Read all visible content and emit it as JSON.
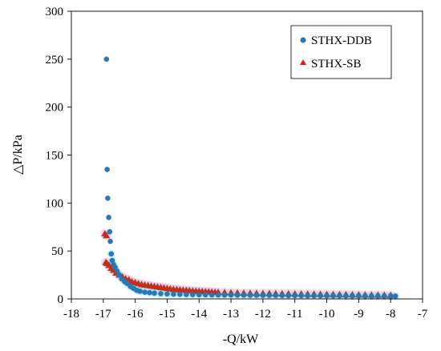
{
  "chart_data": {
    "type": "scatter",
    "xlabel": "-Q/kW",
    "ylabel": "△P/kPa",
    "xlim": [
      -18,
      -7
    ],
    "ylim": [
      0,
      300
    ],
    "xticks": [
      -18,
      -17,
      -16,
      -15,
      -14,
      -13,
      -12,
      -11,
      -10,
      -9,
      -8,
      -7
    ],
    "yticks": [
      0,
      50,
      100,
      150,
      200,
      250,
      300
    ],
    "grid": false,
    "legend_position": "top-right",
    "colors": {
      "ddb": "#2e75b6",
      "sb": "#e0201b",
      "sb_edge": "#6b5a1e",
      "ddb_halo": "#7fe6e6",
      "sb_halo": "#f5b8e8"
    },
    "series": [
      {
        "name": "STHX-DDB",
        "marker": "circle",
        "x": [
          -16.9,
          -16.88,
          -16.86,
          -16.83,
          -16.8,
          -16.78,
          -16.75,
          -16.72,
          -16.68,
          -16.63,
          -16.57,
          -16.5,
          -16.42,
          -16.33,
          -16.25,
          -16.15,
          -16.05,
          -15.95,
          -15.85,
          -15.7,
          -15.55,
          -15.4,
          -15.2,
          -15.0,
          -14.8,
          -14.6,
          -14.4,
          -14.2,
          -14.0,
          -13.8,
          -13.6,
          -13.4,
          -13.2,
          -13.0,
          -12.8,
          -12.6,
          -12.4,
          -12.2,
          -12.0,
          -11.8,
          -11.6,
          -11.4,
          -11.2,
          -11.0,
          -10.8,
          -10.6,
          -10.4,
          -10.2,
          -10.0,
          -9.8,
          -9.6,
          -9.4,
          -9.2,
          -9.0,
          -8.8,
          -8.6,
          -8.4,
          -8.2,
          -8.0,
          -7.85
        ],
        "y": [
          250,
          135,
          105,
          85,
          70,
          60,
          47,
          40,
          36,
          33,
          29,
          25,
          21,
          18,
          16,
          13,
          11,
          9,
          8,
          7,
          6.5,
          6,
          5.5,
          5.2,
          5,
          4.8,
          4.6,
          4.5,
          4.4,
          4.3,
          4.2,
          4.1,
          4,
          4,
          3.9,
          3.9,
          3.8,
          3.8,
          3.7,
          3.7,
          3.6,
          3.6,
          3.5,
          3.5,
          3.5,
          3.4,
          3.4,
          3.4,
          3.3,
          3.3,
          3.3,
          3.2,
          3.2,
          3.2,
          3.1,
          3.1,
          3.1,
          3.0,
          3.0,
          3.0
        ]
      },
      {
        "name": "STHX-SB",
        "marker": "triangle",
        "x": [
          -16.95,
          -16.9,
          -16.92,
          -16.88,
          -16.82,
          -16.75,
          -16.68,
          -16.6,
          -16.5,
          -16.4,
          -16.3,
          -16.2,
          -16.1,
          -16.0,
          -15.9,
          -15.8,
          -15.7,
          -15.6,
          -15.5,
          -15.4,
          -15.3,
          -15.2,
          -15.1,
          -15.0,
          -14.9,
          -14.8,
          -14.7,
          -14.6,
          -14.5,
          -14.4,
          -14.3,
          -14.2,
          -14.1,
          -14.0,
          -13.9,
          -13.8,
          -13.7,
          -13.6,
          -13.5,
          -13.4,
          -13.2,
          -13.0,
          -12.8,
          -12.6,
          -12.4,
          -12.2,
          -12.0,
          -11.8,
          -11.6,
          -11.4,
          -11.2,
          -11.0,
          -10.8,
          -10.6,
          -10.4,
          -10.2,
          -10.0,
          -9.8,
          -9.6,
          -9.4,
          -9.2,
          -9.0,
          -8.8,
          -8.6,
          -8.4,
          -8.2,
          -8.0
        ],
        "y": [
          68,
          66,
          38,
          37,
          35,
          32,
          30,
          27,
          25,
          23,
          21,
          20,
          18,
          17,
          16,
          15,
          14.5,
          14,
          13.5,
          13,
          12.5,
          12,
          11.5,
          11,
          10.5,
          10,
          9.8,
          9.5,
          9.2,
          9,
          8.7,
          8.4,
          8.2,
          8,
          7.8,
          7.6,
          7.4,
          7.2,
          7,
          6.9,
          6.7,
          6.5,
          6.3,
          6.1,
          6,
          5.9,
          5.8,
          5.7,
          5.6,
          5.5,
          5.4,
          5.3,
          5.2,
          5.1,
          5.0,
          4.9,
          4.8,
          4.7,
          4.6,
          4.5,
          4.4,
          4.3,
          4.2,
          4.1,
          4.0,
          3.9,
          3.8
        ]
      }
    ]
  }
}
